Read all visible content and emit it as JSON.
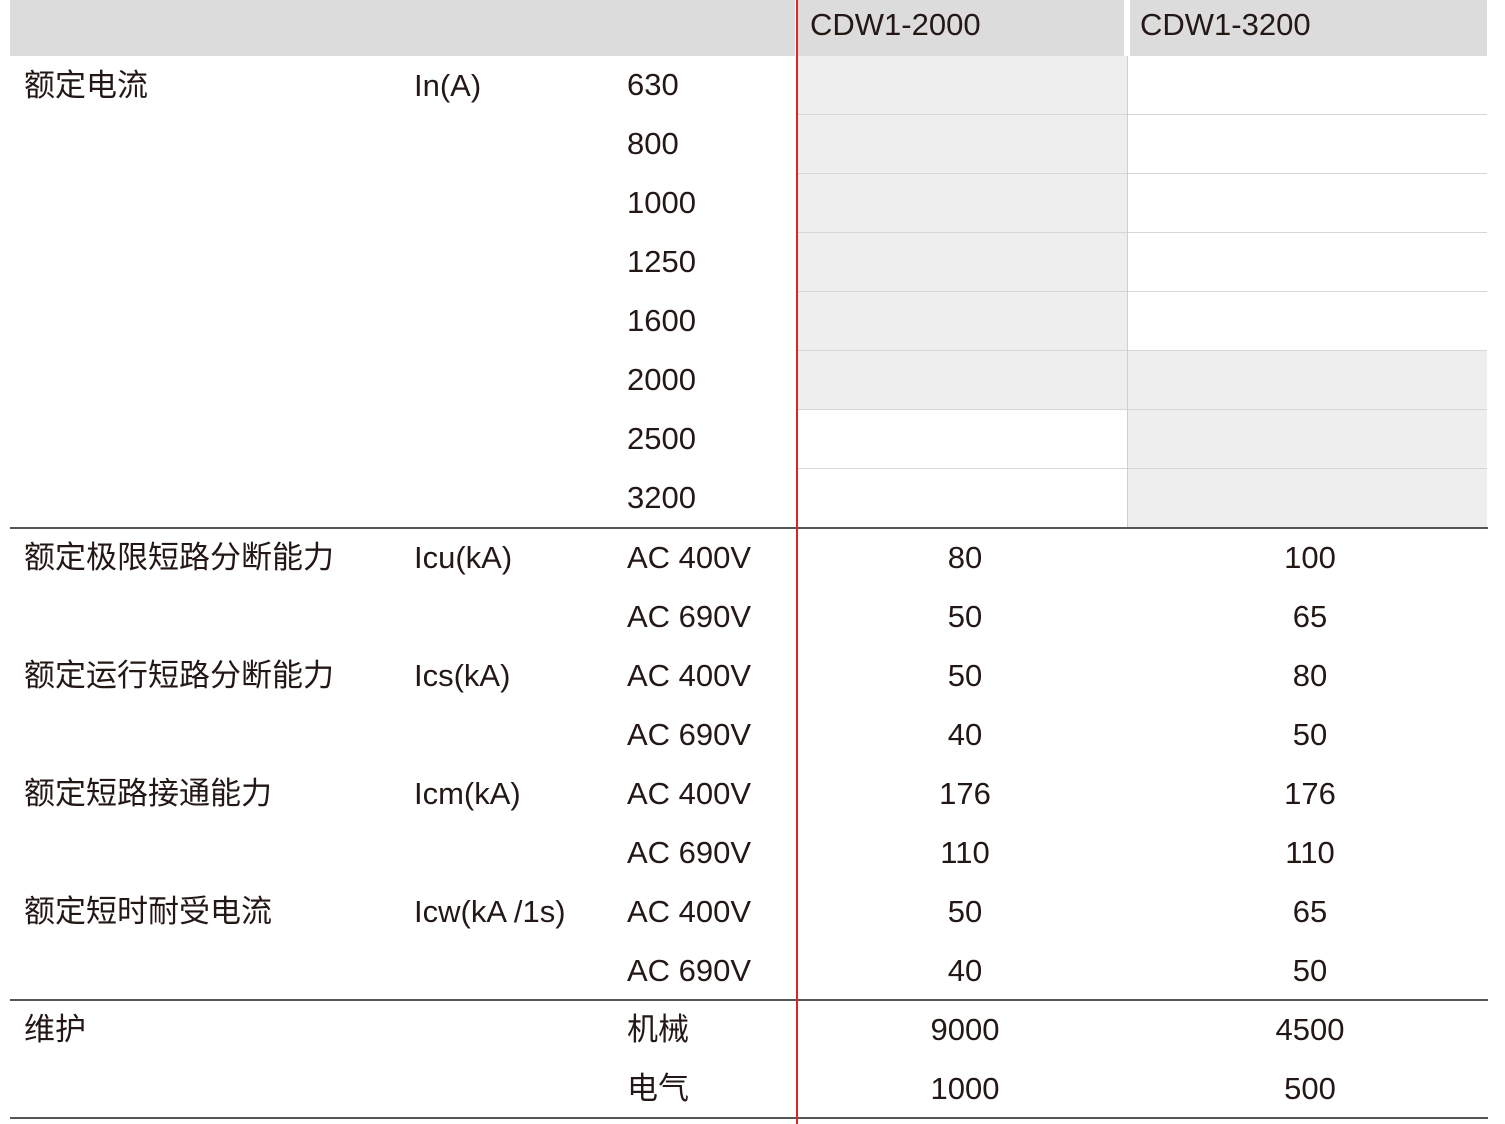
{
  "header": {
    "models": [
      "CDW1-2000",
      "CDW1-3200"
    ]
  },
  "rated_current": {
    "label": "额定电流",
    "unit": "In(A)",
    "rows": [
      {
        "value": "630",
        "supported": [
          true,
          false
        ]
      },
      {
        "value": "800",
        "supported": [
          true,
          false
        ]
      },
      {
        "value": "1000",
        "supported": [
          true,
          false
        ]
      },
      {
        "value": "1250",
        "supported": [
          true,
          false
        ]
      },
      {
        "value": "1600",
        "supported": [
          true,
          false
        ]
      },
      {
        "value": "2000",
        "supported": [
          true,
          true
        ]
      },
      {
        "value": "2500",
        "supported": [
          false,
          true
        ]
      },
      {
        "value": "3200",
        "supported": [
          false,
          true
        ]
      }
    ]
  },
  "ratings": [
    {
      "label": "额定极限短路分断能力",
      "unit": "Icu(kA)",
      "rows": [
        {
          "cond": "AC 400V",
          "values": [
            "80",
            "100"
          ]
        },
        {
          "cond": "AC 690V",
          "values": [
            "50",
            "65"
          ]
        }
      ]
    },
    {
      "label": "额定运行短路分断能力",
      "unit": "Ics(kA)",
      "rows": [
        {
          "cond": "AC 400V",
          "values": [
            "50",
            "80"
          ]
        },
        {
          "cond": "AC 690V",
          "values": [
            "40",
            "50"
          ]
        }
      ]
    },
    {
      "label": "额定短路接通能力",
      "unit": "Icm(kA)",
      "rows": [
        {
          "cond": "AC 400V",
          "values": [
            "176",
            "176"
          ]
        },
        {
          "cond": "AC 690V",
          "values": [
            "110",
            "110"
          ]
        }
      ]
    },
    {
      "label": "额定短时耐受电流",
      "unit": "Icw(kA /1s)",
      "rows": [
        {
          "cond": "AC 400V",
          "values": [
            "50",
            "65"
          ]
        },
        {
          "cond": "AC 690V",
          "values": [
            "40",
            "50"
          ]
        }
      ]
    }
  ],
  "maintenance": {
    "label": "维护",
    "unit": "",
    "rows": [
      {
        "cond": "机械",
        "values": [
          "9000",
          "4500"
        ]
      },
      {
        "cond": "电气",
        "values": [
          "1000",
          "500"
        ]
      }
    ]
  },
  "colors": {
    "header_bg": "#dcdcdc",
    "supported_bg": "#eeeeee",
    "divider": "#d7262d",
    "text": "#231815"
  }
}
